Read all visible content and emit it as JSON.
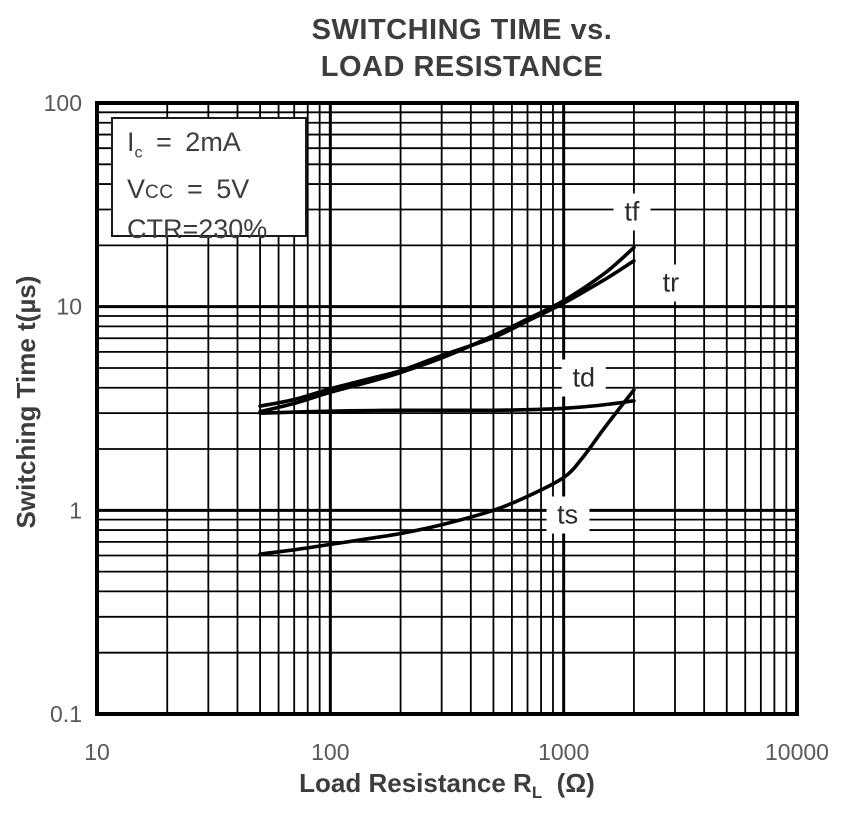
{
  "title": {
    "line1": "SWITCHING TIME vs.",
    "line2": "LOAD RESISTANCE"
  },
  "conditions": {
    "ic": {
      "symbol": "I",
      "sub": "c",
      "value": "= 2mA"
    },
    "vcc": {
      "symbol": "V",
      "sub": "CC",
      "value": "= 5V"
    },
    "ctr": {
      "text": "CTR=230%"
    }
  },
  "x_axis": {
    "label_prefix": "Load Resistance",
    "symbol": "R",
    "sub": "L",
    "unit": "(Ω)"
  },
  "y_axis": {
    "label": "Switching Time  t(µs)"
  },
  "chart_data": {
    "type": "line",
    "title": "SWITCHING TIME vs. LOAD RESISTANCE",
    "xlabel": "Load Resistance RL (Ω)",
    "ylabel": "Switching Time t(µs)",
    "x_scale": "log",
    "y_scale": "log",
    "xlim": [
      10,
      10000
    ],
    "ylim": [
      0.1,
      100
    ],
    "grid": "major-and-minor-log",
    "legend_position": "inline-curve-labels",
    "x_ticks": [
      {
        "v": 10,
        "label": "10"
      },
      {
        "v": 100,
        "label": "100"
      },
      {
        "v": 1000,
        "label": "1000"
      },
      {
        "v": 10000,
        "label": "10000"
      }
    ],
    "y_ticks": [
      {
        "v": 100,
        "label": "100"
      },
      {
        "v": 10,
        "label": "10"
      },
      {
        "v": 1,
        "label": "1"
      },
      {
        "v": 0.1,
        "label": "0.1"
      }
    ],
    "annotations": [
      "Ic = 2mA",
      "VCC = 5V",
      "CTR=230%"
    ],
    "series": [
      {
        "name": "tf",
        "x": [
          50,
          70,
          100,
          150,
          200,
          300,
          500,
          700,
          1000,
          1500,
          2000
        ],
        "y": [
          3.05,
          3.35,
          3.8,
          4.3,
          4.75,
          5.6,
          7.2,
          8.7,
          10.7,
          14.6,
          19.5
        ]
      },
      {
        "name": "tr",
        "x": [
          50,
          70,
          100,
          150,
          200,
          300,
          500,
          700,
          1000,
          1500,
          2000
        ],
        "y": [
          3.25,
          3.5,
          3.95,
          4.45,
          4.85,
          5.75,
          7.05,
          8.5,
          10.4,
          13.6,
          16.8
        ]
      },
      {
        "name": "td",
        "x": [
          50,
          80,
          120,
          200,
          300,
          500,
          700,
          1000,
          1400,
          2000
        ],
        "y": [
          3.0,
          3.05,
          3.08,
          3.1,
          3.1,
          3.1,
          3.12,
          3.17,
          3.27,
          3.45
        ]
      },
      {
        "name": "ts",
        "x": [
          50,
          70,
          100,
          150,
          200,
          300,
          500,
          700,
          1000,
          1200,
          1500,
          2000
        ],
        "y": [
          0.61,
          0.64,
          0.68,
          0.73,
          0.77,
          0.85,
          1.0,
          1.17,
          1.45,
          1.8,
          2.55,
          3.9
        ]
      }
    ],
    "curve_labels": [
      {
        "text": "tf",
        "x": 1960,
        "y": 29
      },
      {
        "text": "tr",
        "x": 2880,
        "y": 13
      },
      {
        "text": "td",
        "x": 1220,
        "y": 4.45
      },
      {
        "text": "ts",
        "x": 1040,
        "y": 0.95
      }
    ],
    "colors": {
      "grid": "#000000",
      "curves": "#000000",
      "tick_labels": "#595959",
      "titles": "#3d3d3d"
    }
  }
}
